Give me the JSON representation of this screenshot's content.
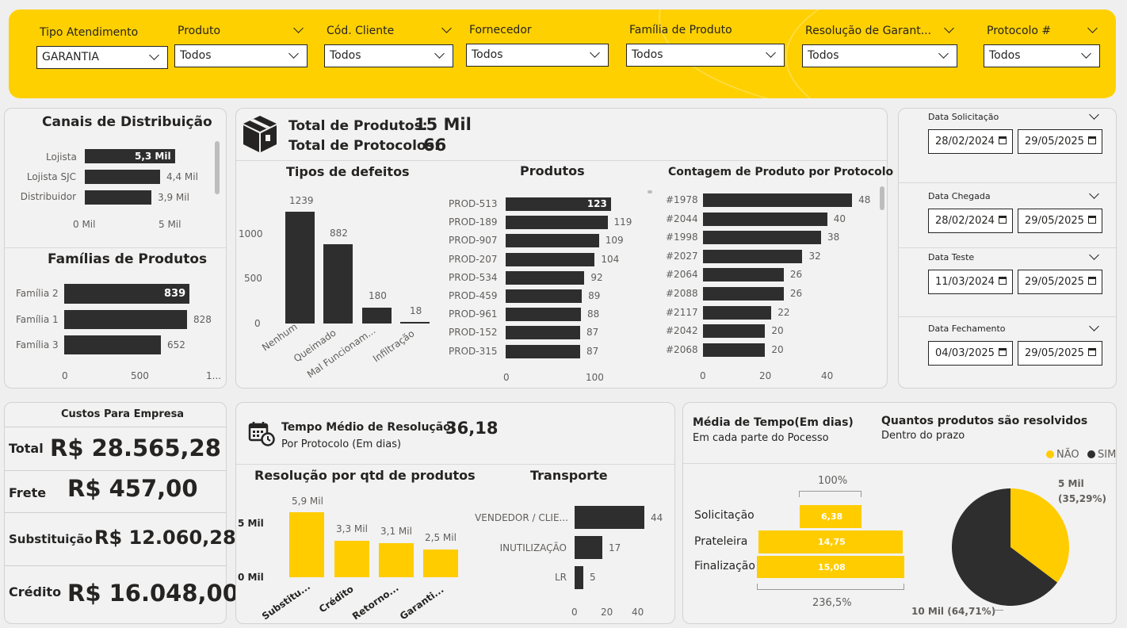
{
  "filters": [
    {
      "label": "Tipo Atendimento",
      "value": "GARANTIA"
    },
    {
      "label": "Produto",
      "value": "Todos"
    },
    {
      "label": "Cód. Cliente",
      "value": "Todos"
    },
    {
      "label": "Fornecedor",
      "value": "Todos"
    },
    {
      "label": "Família de Produto",
      "value": "Todos"
    },
    {
      "label": "Resolução de Garant...",
      "value": "Todos"
    },
    {
      "label": "Protocolo #",
      "value": "Todos"
    }
  ],
  "canais": {
    "title": "Canais de Distribuição",
    "rows": [
      {
        "label": "Lojista",
        "value": "5,3 Mil"
      },
      {
        "label": "Lojista SJC",
        "value": "4,4 Mil"
      },
      {
        "label": "Distribuidor",
        "value": "3,9 Mil"
      }
    ],
    "ticks": [
      "0 Mil",
      "5 Mil"
    ]
  },
  "familias": {
    "title": "Famílias de Produtos",
    "rows": [
      {
        "label": "Família 2",
        "value": "839"
      },
      {
        "label": "Família 1",
        "value": "828"
      },
      {
        "label": "Família 3",
        "value": "652"
      }
    ],
    "ticks": [
      "0",
      "500",
      "1..."
    ]
  },
  "totals": {
    "produtos_label": "Total de Produtos:",
    "produtos_value": "15 Mil",
    "protocolos_label": "Total de Protocolos:",
    "protocolos_value": "66"
  },
  "defeitos": {
    "title": "Tipos de defeitos",
    "yticks": [
      "1000",
      "500",
      "0"
    ],
    "bars": [
      {
        "label": "Nenhum",
        "value": "1239"
      },
      {
        "label": "Queimado",
        "value": "882"
      },
      {
        "label": "Mal Funcionam...",
        "value": "180"
      },
      {
        "label": "Infiltração",
        "value": "18"
      }
    ]
  },
  "produtos": {
    "title": "Produtos",
    "rows": [
      {
        "label": "PROD-513",
        "value": "123"
      },
      {
        "label": "PROD-189",
        "value": "119"
      },
      {
        "label": "PROD-907",
        "value": "109"
      },
      {
        "label": "PROD-207",
        "value": "104"
      },
      {
        "label": "PROD-534",
        "value": "92"
      },
      {
        "label": "PROD-459",
        "value": "89"
      },
      {
        "label": "PROD-961",
        "value": "88"
      },
      {
        "label": "PROD-152",
        "value": "87"
      },
      {
        "label": "PROD-315",
        "value": "87"
      }
    ],
    "ticks": [
      "0",
      "100"
    ]
  },
  "contagem": {
    "title": "Contagem de Produto por Protocolo #",
    "rows": [
      {
        "label": "#1978",
        "value": "48"
      },
      {
        "label": "#2044",
        "value": "40"
      },
      {
        "label": "#1998",
        "value": "38"
      },
      {
        "label": "#2027",
        "value": "32"
      },
      {
        "label": "#2064",
        "value": "26"
      },
      {
        "label": "#2088",
        "value": "26"
      },
      {
        "label": "#2117",
        "value": "22"
      },
      {
        "label": "#2042",
        "value": "20"
      },
      {
        "label": "#2068",
        "value": "20"
      }
    ],
    "ticks": [
      "0",
      "20",
      "40"
    ]
  },
  "datas": [
    {
      "label": "Data Solicitação",
      "start": "28/02/2024",
      "end": "29/05/2025"
    },
    {
      "label": "Data Chegada",
      "start": "28/02/2024",
      "end": "29/05/2025"
    },
    {
      "label": "Data Teste",
      "start": "11/03/2024",
      "end": "29/05/2025"
    },
    {
      "label": "Data Fechamento",
      "start": "04/03/2025",
      "end": "29/05/2025"
    }
  ],
  "custos": {
    "title": "Custos Para Empresa",
    "rows": [
      {
        "label": "Total",
        "value": "R$ 28.565,28"
      },
      {
        "label": "Frete",
        "value": "R$ 457,00"
      },
      {
        "label": "Substituição",
        "value": "R$ 12.060,28"
      },
      {
        "label": "Crédito",
        "value": "R$ 16.048,00"
      }
    ]
  },
  "tempo": {
    "label": "Tempo Médio de Resolução:",
    "value": "36,18",
    "sub": "Por Protocolo (Em dias)"
  },
  "resolucao": {
    "title": "Resolução por qtd de produtos",
    "yticks": [
      "5 Mil",
      "0 Mil"
    ],
    "bars": [
      {
        "label": "Substitu...",
        "value": "5,9 Mil"
      },
      {
        "label": "Crédito",
        "value": "3,3 Mil"
      },
      {
        "label": "Retorno...",
        "value": "3,1 Mil"
      },
      {
        "label": "Garanti...",
        "value": "2,5 Mil"
      }
    ]
  },
  "transporte": {
    "title": "Transporte",
    "rows": [
      {
        "label": "VENDEDOR / CLIE...",
        "value": "44"
      },
      {
        "label": "INUTILIZAÇÃO",
        "value": "17"
      },
      {
        "label": "LR",
        "value": "5"
      }
    ],
    "ticks": [
      "0",
      "20",
      "40"
    ]
  },
  "media": {
    "title": "Média de Tempo(Em dias)",
    "sub": "Em cada parte do Pocesso",
    "top_pct": "100%",
    "bottom_pct": "236,5%",
    "rows": [
      {
        "label": "Solicitação",
        "value": "6,38"
      },
      {
        "label": "Prateleira",
        "value": "14,75"
      },
      {
        "label": "Finalização",
        "value": "15,08"
      }
    ]
  },
  "prazo": {
    "title": "Quantos produtos são resolvidos",
    "sub": "Dentro do prazo",
    "legend": [
      {
        "label": "NÃO",
        "color": "#ffcc00"
      },
      {
        "label": "SIM",
        "color": "#2e2e2e"
      }
    ],
    "nao_value": "5 Mil",
    "nao_pct": "(35,29%)",
    "sim_label": "10 Mil (64,71%)"
  },
  "chart_data": [
    {
      "type": "bar",
      "title": "Canais de Distribuição",
      "categories": [
        "Lojista",
        "Lojista SJC",
        "Distribuidor"
      ],
      "values": [
        5300,
        4400,
        3900
      ]
    },
    {
      "type": "bar",
      "title": "Famílias de Produtos",
      "categories": [
        "Família 2",
        "Família 1",
        "Família 3"
      ],
      "values": [
        839,
        828,
        652
      ]
    },
    {
      "type": "bar",
      "title": "Tipos de defeitos",
      "categories": [
        "Nenhum",
        "Queimado",
        "Mal Funcionam...",
        "Infiltração"
      ],
      "values": [
        1239,
        882,
        180,
        18
      ]
    },
    {
      "type": "bar",
      "title": "Produtos",
      "categories": [
        "PROD-513",
        "PROD-189",
        "PROD-907",
        "PROD-207",
        "PROD-534",
        "PROD-459",
        "PROD-961",
        "PROD-152",
        "PROD-315"
      ],
      "values": [
        123,
        119,
        109,
        104,
        92,
        89,
        88,
        87,
        87
      ]
    },
    {
      "type": "bar",
      "title": "Contagem de Produto por Protocolo #",
      "categories": [
        "#1978",
        "#2044",
        "#1998",
        "#2027",
        "#2064",
        "#2088",
        "#2117",
        "#2042",
        "#2068"
      ],
      "values": [
        48,
        40,
        38,
        32,
        26,
        26,
        22,
        20,
        20
      ]
    },
    {
      "type": "bar",
      "title": "Resolução por qtd de produtos",
      "categories": [
        "Substitu...",
        "Crédito",
        "Retorno...",
        "Garanti..."
      ],
      "values": [
        5900,
        3300,
        3100,
        2500
      ]
    },
    {
      "type": "bar",
      "title": "Transporte",
      "categories": [
        "VENDEDOR / CLIE...",
        "INUTILIZAÇÃO",
        "LR"
      ],
      "values": [
        44,
        17,
        5
      ]
    },
    {
      "type": "bar",
      "title": "Média de Tempo(Em dias)",
      "categories": [
        "Solicitação",
        "Prateleira",
        "Finalização"
      ],
      "values": [
        6.38,
        14.75,
        15.08
      ]
    },
    {
      "type": "pie",
      "title": "Quantos produtos são resolvidos",
      "categories": [
        "NÃO",
        "SIM"
      ],
      "values": [
        35.29,
        64.71
      ]
    }
  ]
}
